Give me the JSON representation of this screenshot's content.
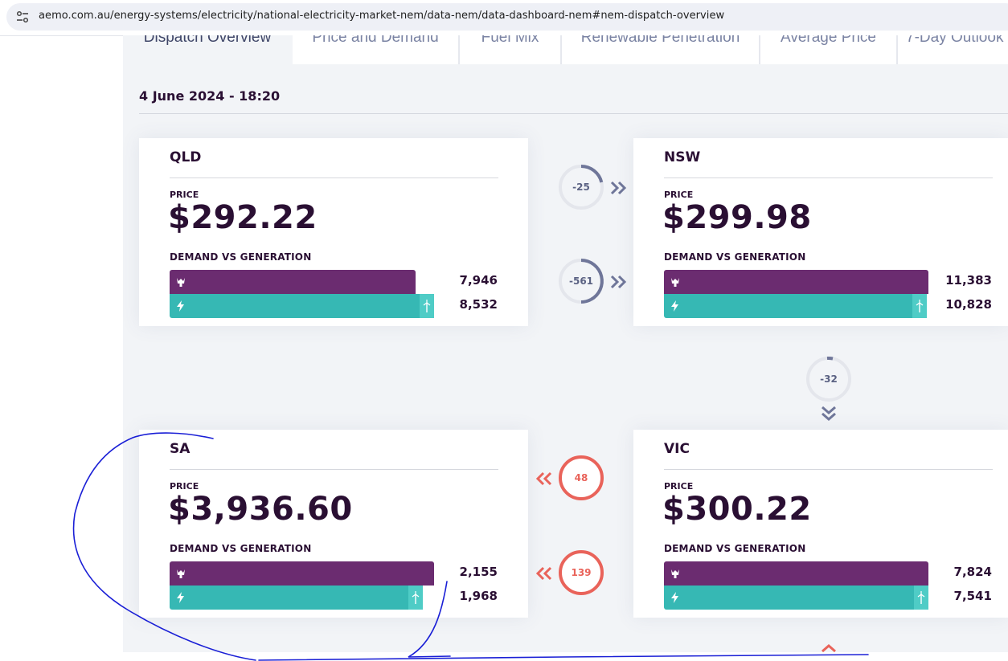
{
  "browser": {
    "url": "aemo.com.au/energy-systems/electricity/national-electricity-market-nem/data-nem/data-dashboard-nem#nem-dispatch-overview"
  },
  "tabs": [
    {
      "label": "Dispatch Overview",
      "active": true
    },
    {
      "label": "Price and Demand",
      "active": false
    },
    {
      "label": "Fuel Mix",
      "active": false
    },
    {
      "label": "Renewable Penetration",
      "active": false
    },
    {
      "label": "Average Price",
      "active": false
    },
    {
      "label": "7-Day Outlook",
      "active": false
    }
  ],
  "timestamp": "4 June 2024 - 18:20",
  "labels": {
    "price": "PRICE",
    "demand_vs_generation": "DEMAND VS GENERATION"
  },
  "regions": {
    "qld": {
      "name": "QLD",
      "price": "$292.22",
      "demand": "7,946",
      "generation": "8,532",
      "demand_value": 7946,
      "generation_value": 8532
    },
    "nsw": {
      "name": "NSW",
      "price": "$299.98",
      "demand": "11,383",
      "generation": "10,828",
      "demand_value": 11383,
      "generation_value": 10828
    },
    "sa": {
      "name": "SA",
      "price": "$3,936.60",
      "demand": "2,155",
      "generation": "1,968",
      "demand_value": 2155,
      "generation_value": 1968
    },
    "vic": {
      "name": "VIC",
      "price": "$300.22",
      "demand": "7,824",
      "generation": "7,541",
      "demand_value": 7824,
      "generation_value": 7541
    }
  },
  "interconnectors": {
    "qld_nsw_upper": {
      "value": "-25",
      "direction": "east",
      "color": "#6f7699",
      "fill_fraction": 0.3
    },
    "qld_nsw_lower": {
      "value": "-561",
      "direction": "east",
      "color": "#6f7699",
      "fill_fraction": 0.55
    },
    "nsw_vic": {
      "value": "-32",
      "direction": "south",
      "color": "#6f7699",
      "fill_fraction": 0.05
    },
    "sa_vic_upper": {
      "value": "48",
      "direction": "west",
      "color": "#e9635a",
      "fill_fraction": 1.0
    },
    "sa_vic_lower": {
      "value": "139",
      "direction": "west",
      "color": "#e9635a",
      "fill_fraction": 1.0
    }
  },
  "colors": {
    "demand_bar": "#6b2c70",
    "generation_bar": "#36b8b4",
    "text_dark": "#2a0f33",
    "panel_bg": "#f2f4f7"
  }
}
